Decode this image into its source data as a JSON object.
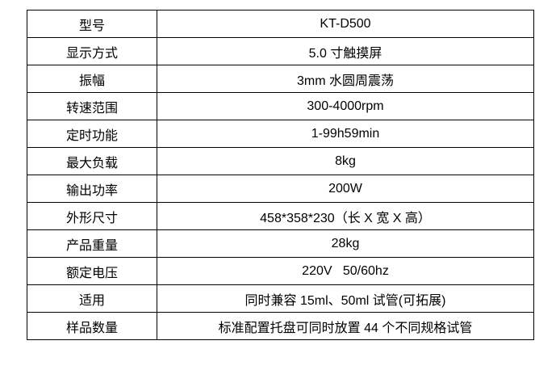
{
  "colors": {
    "background": "#ffffff",
    "border": "#000000",
    "text": "#000000"
  },
  "table": {
    "rows": [
      {
        "label": "型号",
        "value": "KT-D500"
      },
      {
        "label": "显示方式",
        "value": "5.0 寸触摸屏"
      },
      {
        "label": "振幅",
        "value": "3mm 水圆周震荡"
      },
      {
        "label": "转速范围",
        "value": "300-4000rpm"
      },
      {
        "label": "定时功能",
        "value": "1-99h59min"
      },
      {
        "label": "最大负载",
        "value": "8kg"
      },
      {
        "label": "输出功率",
        "value": "200W"
      },
      {
        "label": "外形尺寸",
        "value": "458*358*230（长 X 宽 X 高）"
      },
      {
        "label": "产品重量",
        "value": "28kg"
      },
      {
        "label": "额定电压",
        "value": "220V   50/60hz"
      },
      {
        "label": "适用",
        "value": "同时兼容 15ml、50ml 试管(可拓展)"
      },
      {
        "label": "样品数量",
        "value": "标准配置托盘可同时放置 44 个不同规格试管"
      }
    ]
  }
}
